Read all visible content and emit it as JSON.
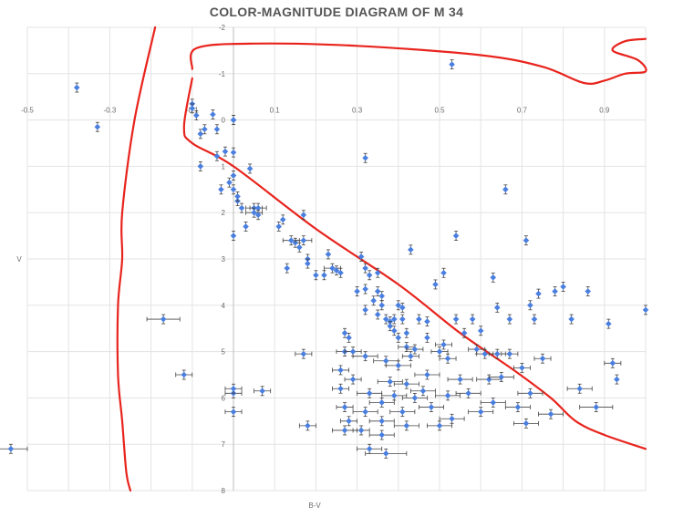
{
  "chart_data": {
    "type": "scatter",
    "title": "COLOR-MAGNITUDE DIAGRAM OF M 34",
    "xlabel": "B-V",
    "ylabel": "V",
    "xlim": [
      -0.5,
      1.0
    ],
    "ylim": [
      8,
      -2
    ],
    "y_inverted": true,
    "grid": true,
    "legend": "none",
    "x_ticks": [
      "-0.5",
      "-0.3",
      "-0.1",
      "0.1",
      "0.3",
      "0.5",
      "0.7",
      "0.9"
    ],
    "x_tick_values": [
      -0.5,
      -0.3,
      -0.1,
      0.1,
      0.3,
      0.5,
      0.7,
      0.9
    ],
    "y_ticks": [
      "-2",
      "-1",
      "0",
      "1",
      "2",
      "3",
      "4",
      "5",
      "6",
      "7",
      "8"
    ],
    "y_tick_values": [
      -2,
      -1,
      0,
      1,
      2,
      3,
      4,
      5,
      6,
      7,
      8
    ],
    "colors": {
      "points": "#4a7fe0",
      "error_bars": "#444444",
      "curve": "#e8241d",
      "grid": "#e3e3e3"
    },
    "series": [
      {
        "marker": "diamond",
        "points": [
          [
            -0.54,
            7.1,
            0.04
          ],
          [
            -0.38,
            -0.7,
            0
          ],
          [
            -0.33,
            0.15,
            0
          ],
          [
            -0.17,
            4.3,
            0.04
          ],
          [
            -0.12,
            5.5,
            0.02
          ],
          [
            -0.1,
            -0.35,
            0
          ],
          [
            -0.1,
            -0.25,
            0
          ],
          [
            -0.09,
            -0.1,
            0
          ],
          [
            -0.08,
            0.3,
            0
          ],
          [
            -0.07,
            0.2,
            0
          ],
          [
            -0.08,
            1.0,
            0
          ],
          [
            -0.05,
            -0.12,
            0
          ],
          [
            -0.04,
            0.2,
            0
          ],
          [
            -0.04,
            0.78,
            0
          ],
          [
            -0.02,
            0.68,
            0
          ],
          [
            -0.03,
            1.5,
            0
          ],
          [
            0.0,
            0.0,
            0
          ],
          [
            0.0,
            0.0,
            0
          ],
          [
            0.0,
            0.7,
            0
          ],
          [
            0.0,
            1.2,
            0
          ],
          [
            -0.01,
            1.35,
            0
          ],
          [
            0.0,
            1.5,
            0
          ],
          [
            0.01,
            1.75,
            0
          ],
          [
            0.01,
            1.65,
            0
          ],
          [
            0.02,
            1.9,
            0
          ],
          [
            0.0,
            2.5,
            0
          ],
          [
            0.03,
            2.3,
            0
          ],
          [
            0.0,
            5.9,
            0.02
          ],
          [
            0.0,
            5.8,
            0.02
          ],
          [
            0.0,
            6.3,
            0.02
          ],
          [
            0.04,
            1.05,
            0
          ],
          [
            0.05,
            1.9,
            0.02
          ],
          [
            0.05,
            2.0,
            0.02
          ],
          [
            0.06,
            1.9,
            0.02
          ],
          [
            0.06,
            2.05,
            0
          ],
          [
            0.07,
            5.85,
            0.02
          ],
          [
            0.11,
            2.3,
            0
          ],
          [
            0.12,
            2.15,
            0
          ],
          [
            0.13,
            3.2,
            0
          ],
          [
            0.14,
            2.6,
            0.02
          ],
          [
            0.15,
            2.65,
            0
          ],
          [
            0.16,
            2.75,
            0
          ],
          [
            0.17,
            2.6,
            0.02
          ],
          [
            0.17,
            2.05,
            0
          ],
          [
            0.18,
            3.0,
            0
          ],
          [
            0.18,
            3.1,
            0
          ],
          [
            0.17,
            5.05,
            0.02
          ],
          [
            0.18,
            6.6,
            0.02
          ],
          [
            0.2,
            3.35,
            0
          ],
          [
            0.22,
            3.35,
            0
          ],
          [
            0.23,
            2.9,
            0
          ],
          [
            0.24,
            3.2,
            0.02
          ],
          [
            0.25,
            3.25,
            0
          ],
          [
            0.26,
            3.3,
            0
          ],
          [
            0.27,
            4.6,
            0
          ],
          [
            0.28,
            4.7,
            0
          ],
          [
            0.27,
            5.0,
            0.02
          ],
          [
            0.26,
            5.4,
            0.02
          ],
          [
            0.26,
            5.8,
            0.02
          ],
          [
            0.27,
            6.2,
            0.02
          ],
          [
            0.28,
            6.5,
            0.02
          ],
          [
            0.27,
            6.7,
            0.03
          ],
          [
            0.29,
            5.0,
            0.02
          ],
          [
            0.29,
            5.6,
            0.02
          ],
          [
            0.3,
            3.7,
            0
          ],
          [
            0.31,
            2.95,
            0
          ],
          [
            0.32,
            3.2,
            0
          ],
          [
            0.32,
            3.65,
            0
          ],
          [
            0.33,
            3.35,
            0
          ],
          [
            0.32,
            4.1,
            0
          ],
          [
            0.32,
            0.82,
            0
          ],
          [
            0.32,
            5.1,
            0.03
          ],
          [
            0.33,
            5.9,
            0.03
          ],
          [
            0.32,
            6.3,
            0.03
          ],
          [
            0.31,
            6.7,
            0.02
          ],
          [
            0.33,
            7.1,
            0.03
          ],
          [
            0.34,
            3.9,
            0
          ],
          [
            0.35,
            3.7,
            0
          ],
          [
            0.35,
            4.2,
            0
          ],
          [
            0.36,
            3.8,
            0
          ],
          [
            0.36,
            4.0,
            0
          ],
          [
            0.35,
            3.3,
            0
          ],
          [
            0.36,
            6.1,
            0.03
          ],
          [
            0.36,
            6.5,
            0.03
          ],
          [
            0.36,
            6.8,
            0.03
          ],
          [
            0.37,
            7.2,
            0.05
          ],
          [
            0.37,
            4.3,
            0
          ],
          [
            0.37,
            5.2,
            0.03
          ],
          [
            0.38,
            4.35,
            0
          ],
          [
            0.38,
            4.45,
            0
          ],
          [
            0.38,
            5.65,
            0.03
          ],
          [
            0.39,
            4.3,
            0
          ],
          [
            0.39,
            4.55,
            0
          ],
          [
            0.39,
            5.95,
            0.03
          ],
          [
            0.4,
            4.0,
            0
          ],
          [
            0.4,
            4.7,
            0
          ],
          [
            0.4,
            5.3,
            0.03
          ],
          [
            0.41,
            4.05,
            0
          ],
          [
            0.41,
            4.3,
            0
          ],
          [
            0.41,
            6.3,
            0.03
          ],
          [
            0.42,
            4.6,
            0
          ],
          [
            0.42,
            4.9,
            0.02
          ],
          [
            0.42,
            5.7,
            0.03
          ],
          [
            0.42,
            6.6,
            0.03
          ],
          [
            0.43,
            2.8,
            0
          ],
          [
            0.43,
            5.1,
            0.02
          ],
          [
            0.44,
            4.95,
            0.02
          ],
          [
            0.44,
            6.0,
            0.03
          ],
          [
            0.45,
            4.3,
            0
          ],
          [
            0.46,
            5.85,
            0.03
          ],
          [
            0.47,
            4.35,
            0
          ],
          [
            0.47,
            4.7,
            0
          ],
          [
            0.47,
            5.5,
            0.03
          ],
          [
            0.48,
            6.2,
            0.03
          ],
          [
            0.49,
            3.55,
            0
          ],
          [
            0.5,
            5.0,
            0.02
          ],
          [
            0.5,
            6.6,
            0.03
          ],
          [
            0.51,
            3.3,
            0
          ],
          [
            0.51,
            4.85,
            0.02
          ],
          [
            0.52,
            5.15,
            0.02
          ],
          [
            0.52,
            5.95,
            0.03
          ],
          [
            0.53,
            6.45,
            0.03
          ],
          [
            0.53,
            -1.2,
            0
          ],
          [
            0.54,
            2.5,
            0
          ],
          [
            0.54,
            4.3,
            0
          ],
          [
            0.55,
            5.6,
            0.03
          ],
          [
            0.56,
            4.6,
            0
          ],
          [
            0.57,
            5.9,
            0.03
          ],
          [
            0.58,
            4.3,
            0
          ],
          [
            0.59,
            4.95,
            0.02
          ],
          [
            0.6,
            6.3,
            0.03
          ],
          [
            0.6,
            4.55,
            0
          ],
          [
            0.61,
            5.05,
            0.02
          ],
          [
            0.62,
            5.6,
            0.03
          ],
          [
            0.63,
            3.4,
            0
          ],
          [
            0.63,
            6.1,
            0.03
          ],
          [
            0.64,
            4.05,
            0
          ],
          [
            0.64,
            5.05,
            0.02
          ],
          [
            0.65,
            5.55,
            0.03
          ],
          [
            0.66,
            1.5,
            0
          ],
          [
            0.67,
            4.3,
            0
          ],
          [
            0.67,
            5.05,
            0.02
          ],
          [
            0.69,
            6.2,
            0.03
          ],
          [
            0.7,
            5.35,
            0.02
          ],
          [
            0.71,
            2.6,
            0
          ],
          [
            0.71,
            6.55,
            0.03
          ],
          [
            0.72,
            4.0,
            0
          ],
          [
            0.72,
            5.9,
            0.03
          ],
          [
            0.73,
            4.3,
            0
          ],
          [
            0.74,
            3.75,
            0
          ],
          [
            0.75,
            5.15,
            0.02
          ],
          [
            0.77,
            6.35,
            0.03
          ],
          [
            0.78,
            3.7,
            0
          ],
          [
            0.8,
            3.6,
            0
          ],
          [
            0.82,
            4.3,
            0
          ],
          [
            0.84,
            5.8,
            0.03
          ],
          [
            0.86,
            3.7,
            0
          ],
          [
            0.88,
            6.2,
            0.04
          ],
          [
            0.91,
            4.4,
            0
          ],
          [
            0.92,
            5.25,
            0.02
          ],
          [
            0.93,
            5.6,
            0
          ],
          [
            1.0,
            4.1,
            0
          ]
        ]
      }
    ],
    "annotations": [
      {
        "type": "freehand-curve",
        "color": "#e8241d",
        "paths": [
          [
            [
              -0.19,
              -2.0
            ],
            [
              -0.24,
              0.0
            ],
            [
              -0.27,
              2.0
            ],
            [
              -0.27,
              3.0
            ],
            [
              -0.28,
              4.0
            ],
            [
              -0.28,
              5.5
            ],
            [
              -0.27,
              6.5
            ],
            [
              -0.26,
              7.6
            ],
            [
              -0.25,
              8.0
            ]
          ],
          [
            [
              -0.1,
              -1.1
            ],
            [
              -0.09,
              -1.55
            ],
            [
              0.05,
              -1.65
            ],
            [
              0.3,
              -1.6
            ],
            [
              0.6,
              -1.4
            ],
            [
              0.75,
              -1.15
            ],
            [
              0.85,
              -0.8
            ],
            [
              0.9,
              -0.85
            ],
            [
              0.95,
              -1.0
            ],
            [
              1.0,
              -1.05
            ],
            [
              0.98,
              -1.3
            ],
            [
              0.92,
              -1.5
            ],
            [
              0.95,
              -1.7
            ],
            [
              1.0,
              -1.75
            ]
          ],
          [
            [
              -0.1,
              -0.9
            ],
            [
              -0.12,
              0.15
            ],
            [
              -0.1,
              0.5
            ],
            [
              0.0,
              1.0
            ],
            [
              0.2,
              2.35
            ],
            [
              0.4,
              3.55
            ],
            [
              0.55,
              4.6
            ],
            [
              0.68,
              5.4
            ],
            [
              0.77,
              6.0
            ],
            [
              0.83,
              6.5
            ],
            [
              0.9,
              6.8
            ],
            [
              1.0,
              7.1
            ]
          ]
        ]
      }
    ]
  }
}
